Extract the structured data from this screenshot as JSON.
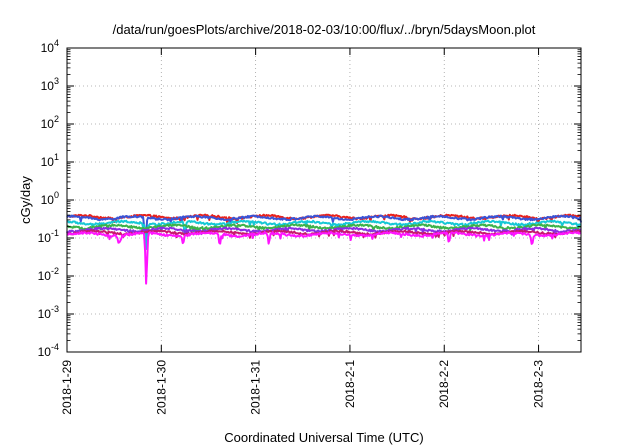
{
  "chart_data": {
    "type": "line",
    "title": "/data/run/goesPlots/archive/2018-02-03/10:00/flux/../bryn/5daysMoon.plot",
    "xlabel": "Coordinated Universal Time (UTC)",
    "ylabel": "cGy/day",
    "yscale": "log",
    "ylim": [
      0.0001,
      10000
    ],
    "y_ticks": [
      {
        "base": "10",
        "exp": "-4"
      },
      {
        "base": "10",
        "exp": "-3"
      },
      {
        "base": "10",
        "exp": "-2"
      },
      {
        "base": "10",
        "exp": "-1"
      },
      {
        "base": "10",
        "exp": "0"
      },
      {
        "base": "10",
        "exp": "1"
      },
      {
        "base": "10",
        "exp": "2"
      },
      {
        "base": "10",
        "exp": "3"
      },
      {
        "base": "10",
        "exp": "4"
      }
    ],
    "x_ticks": [
      "2018-1-29",
      "2018-1-30",
      "2018-1-31",
      "2018-2-1",
      "2018-2-2",
      "2018-2-3"
    ],
    "xlim_days": [
      0,
      5.45
    ],
    "grid": true,
    "legend": "none",
    "series": [
      {
        "color": "#e8221d",
        "base": 0.36,
        "dips": []
      },
      {
        "color": "#3a53d6",
        "base": 0.34,
        "dips": [
          [
            0.83,
            0.06
          ]
        ]
      },
      {
        "color": "#16c8d6",
        "base": 0.25,
        "dips": [
          [
            0.84,
            0.05
          ],
          [
            1.25,
            0.12
          ]
        ]
      },
      {
        "color": "#3cb24a",
        "base": 0.2,
        "dips": []
      },
      {
        "color": "#8a2de2",
        "base": 0.165,
        "dips": []
      },
      {
        "color": "#c8196e",
        "base": 0.14,
        "dips": []
      },
      {
        "color": "#ff14ff",
        "base": 0.125,
        "dips": [
          [
            0.84,
            0.006
          ],
          [
            0.55,
            0.07
          ],
          [
            1.23,
            0.07
          ],
          [
            1.62,
            0.065
          ],
          [
            2.14,
            0.07
          ],
          [
            4.05,
            0.075
          ],
          [
            4.93,
            0.065
          ]
        ]
      }
    ]
  }
}
